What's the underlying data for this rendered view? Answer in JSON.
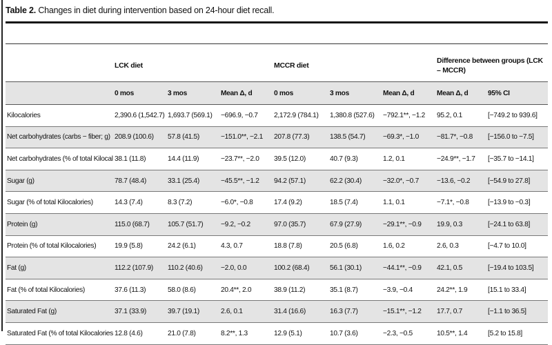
{
  "caption": {
    "label": "Table 2.",
    "text": "Changes in diet during intervention based on 24-hour diet recall."
  },
  "groups": {
    "lck": "LCK diet",
    "mccr": "MCCR diet",
    "diff": "Difference between groups (LCK – MCCR)"
  },
  "subheaders": [
    "0 mos",
    "3 mos",
    "Mean Δ, d",
    "0 mos",
    "3 mos",
    "Mean Δ, d",
    "Mean Δ, d",
    "95% CI"
  ],
  "rows": [
    {
      "label": "Kilocalories",
      "cells": [
        "2,390.6 (1,542.7)",
        "1,693.7 (569.1)",
        "−696.9, −0.7",
        "2,172.9 (784.1)",
        "1,380.8 (527.6)",
        "−792.1**, −1.2",
        "95.2, 0.1",
        "[−749.2 to 939.6]"
      ]
    },
    {
      "label": "Net carbohydrates (carbs − fiber; g)",
      "cells": [
        "208.9 (100.6)",
        "57.8 (41.5)",
        "−151.0**, −2.1",
        "207.8 (77.3)",
        "138.5 (54.7)",
        "−69.3*, −1.0",
        "−81.7*, −0.8",
        "[−156.0 to −7.5]"
      ]
    },
    {
      "label": "Net carbohydrates (% of total Kilocalories)",
      "cells": [
        "38.1 (11.8)",
        "14.4 (11.9)",
        "−23.7**, −2.0",
        "39.5 (12.0)",
        "40.7 (9.3)",
        "1.2, 0.1",
        "−24.9**, −1.7",
        "[−35.7 to −14.1]"
      ]
    },
    {
      "label": "Sugar (g)",
      "cells": [
        "78.7 (48.4)",
        "33.1 (25.4)",
        "−45.5**, −1.2",
        "94.2 (57.1)",
        "62.2 (30.4)",
        "−32.0*, −0.7",
        "−13.6, −0.2",
        "[−54.9 to 27.8]"
      ]
    },
    {
      "label": "Sugar (% of total Kilocalories)",
      "cells": [
        "14.3 (7.4)",
        "8.3 (7.2)",
        "−6.0*, −0.8",
        "17.4 (9.2)",
        "18.5 (7.4)",
        "1.1, 0.1",
        "−7.1*, −0.8",
        "[−13.9 to −0.3]"
      ]
    },
    {
      "label": "Protein (g)",
      "cells": [
        "115.0 (68.7)",
        "105.7 (51.7)",
        "−9.2, −0.2",
        "97.0 (35.7)",
        "67.9 (27.9)",
        "−29.1**, −0.9",
        "19.9, 0.3",
        "[−24.1 to 63.8]"
      ]
    },
    {
      "label": "Protein (% of total Kilocalories)",
      "cells": [
        "19.9 (5.8)",
        "24.2 (6.1)",
        "4.3, 0.7",
        "18.8 (7.8)",
        "20.5 (6.8)",
        "1.6, 0.2",
        "2.6, 0.3",
        "[−4.7 to 10.0]"
      ]
    },
    {
      "label": "Fat (g)",
      "cells": [
        "112.2 (107.9)",
        "110.2 (40.6)",
        "−2.0, 0.0",
        "100.2 (68.4)",
        "56.1 (30.1)",
        "−44.1**, −0.9",
        "42.1, 0.5",
        "[−19.4 to 103.5]"
      ]
    },
    {
      "label": "Fat (% of total Kilocalories)",
      "cells": [
        "37.6 (11.3)",
        "58.0 (8.6)",
        "20.4**, 2.0",
        "38.9 (11.2)",
        "35.1 (8.7)",
        "−3.9, −0.4",
        "24.2**, 1.9",
        "[15.1 to 33.4]"
      ]
    },
    {
      "label": "Saturated Fat (g)",
      "cells": [
        "37.1 (33.9)",
        "39.7 (19.1)",
        "2.6, 0.1",
        "31.4 (16.6)",
        "16.3 (7.7)",
        "−15.1**, −1.2",
        "17.7, 0.7",
        "[−1.1 to 36.5]"
      ]
    },
    {
      "label": "Saturated Fat (% of total Kilocalories)",
      "cells": [
        "12.8 (4.6)",
        "21.0 (7.8)",
        "8.2**, 1.3",
        "12.9 (5.1)",
        "10.7 (3.6)",
        "−2.3, −0.5",
        "10.5**, 1.4",
        "[5.2 to 15.8]"
      ]
    }
  ]
}
